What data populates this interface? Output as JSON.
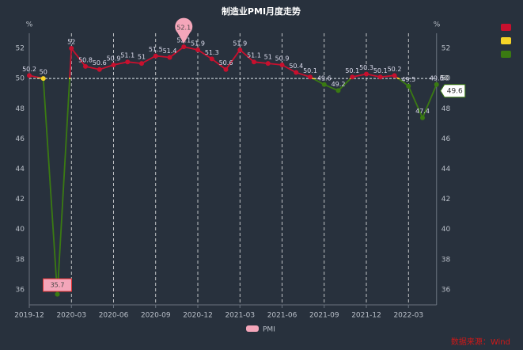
{
  "chart_data": {
    "type": "line",
    "title": "制造业PMI月度走势",
    "y_unit": "%",
    "categories": [
      "2019-12",
      null,
      null,
      "2020-03",
      null,
      null,
      "2020-06",
      null,
      null,
      "2020-09",
      null,
      null,
      "2020-12",
      null,
      null,
      "2021-03",
      null,
      null,
      "2021-06",
      null,
      null,
      "2021-09",
      null,
      null,
      "2021-12",
      null,
      null,
      "2022-03",
      null,
      null
    ],
    "series": [
      {
        "name": "PMI",
        "color": "#f4a6ba",
        "values": [
          50.2,
          50,
          35.7,
          52,
          50.8,
          50.6,
          50.9,
          51.1,
          51,
          51.5,
          51.4,
          52.1,
          51.9,
          51.3,
          50.6,
          51.9,
          51.1,
          51,
          50.9,
          50.4,
          50.1,
          49.6,
          49.2,
          50.1,
          50.3,
          50.1,
          50.2,
          49.5,
          47.4,
          49.6
        ]
      }
    ],
    "mark_line": 50,
    "visual_map": [
      {
        "color": "#c8102e"
      },
      {
        "color": "#f5d327"
      },
      {
        "color": "#3a7a12"
      }
    ],
    "ylim": [
      35,
      53
    ],
    "yticks": [
      36,
      38,
      40,
      42,
      44,
      46,
      48,
      50,
      52
    ],
    "source": "数据来源：Wind"
  }
}
